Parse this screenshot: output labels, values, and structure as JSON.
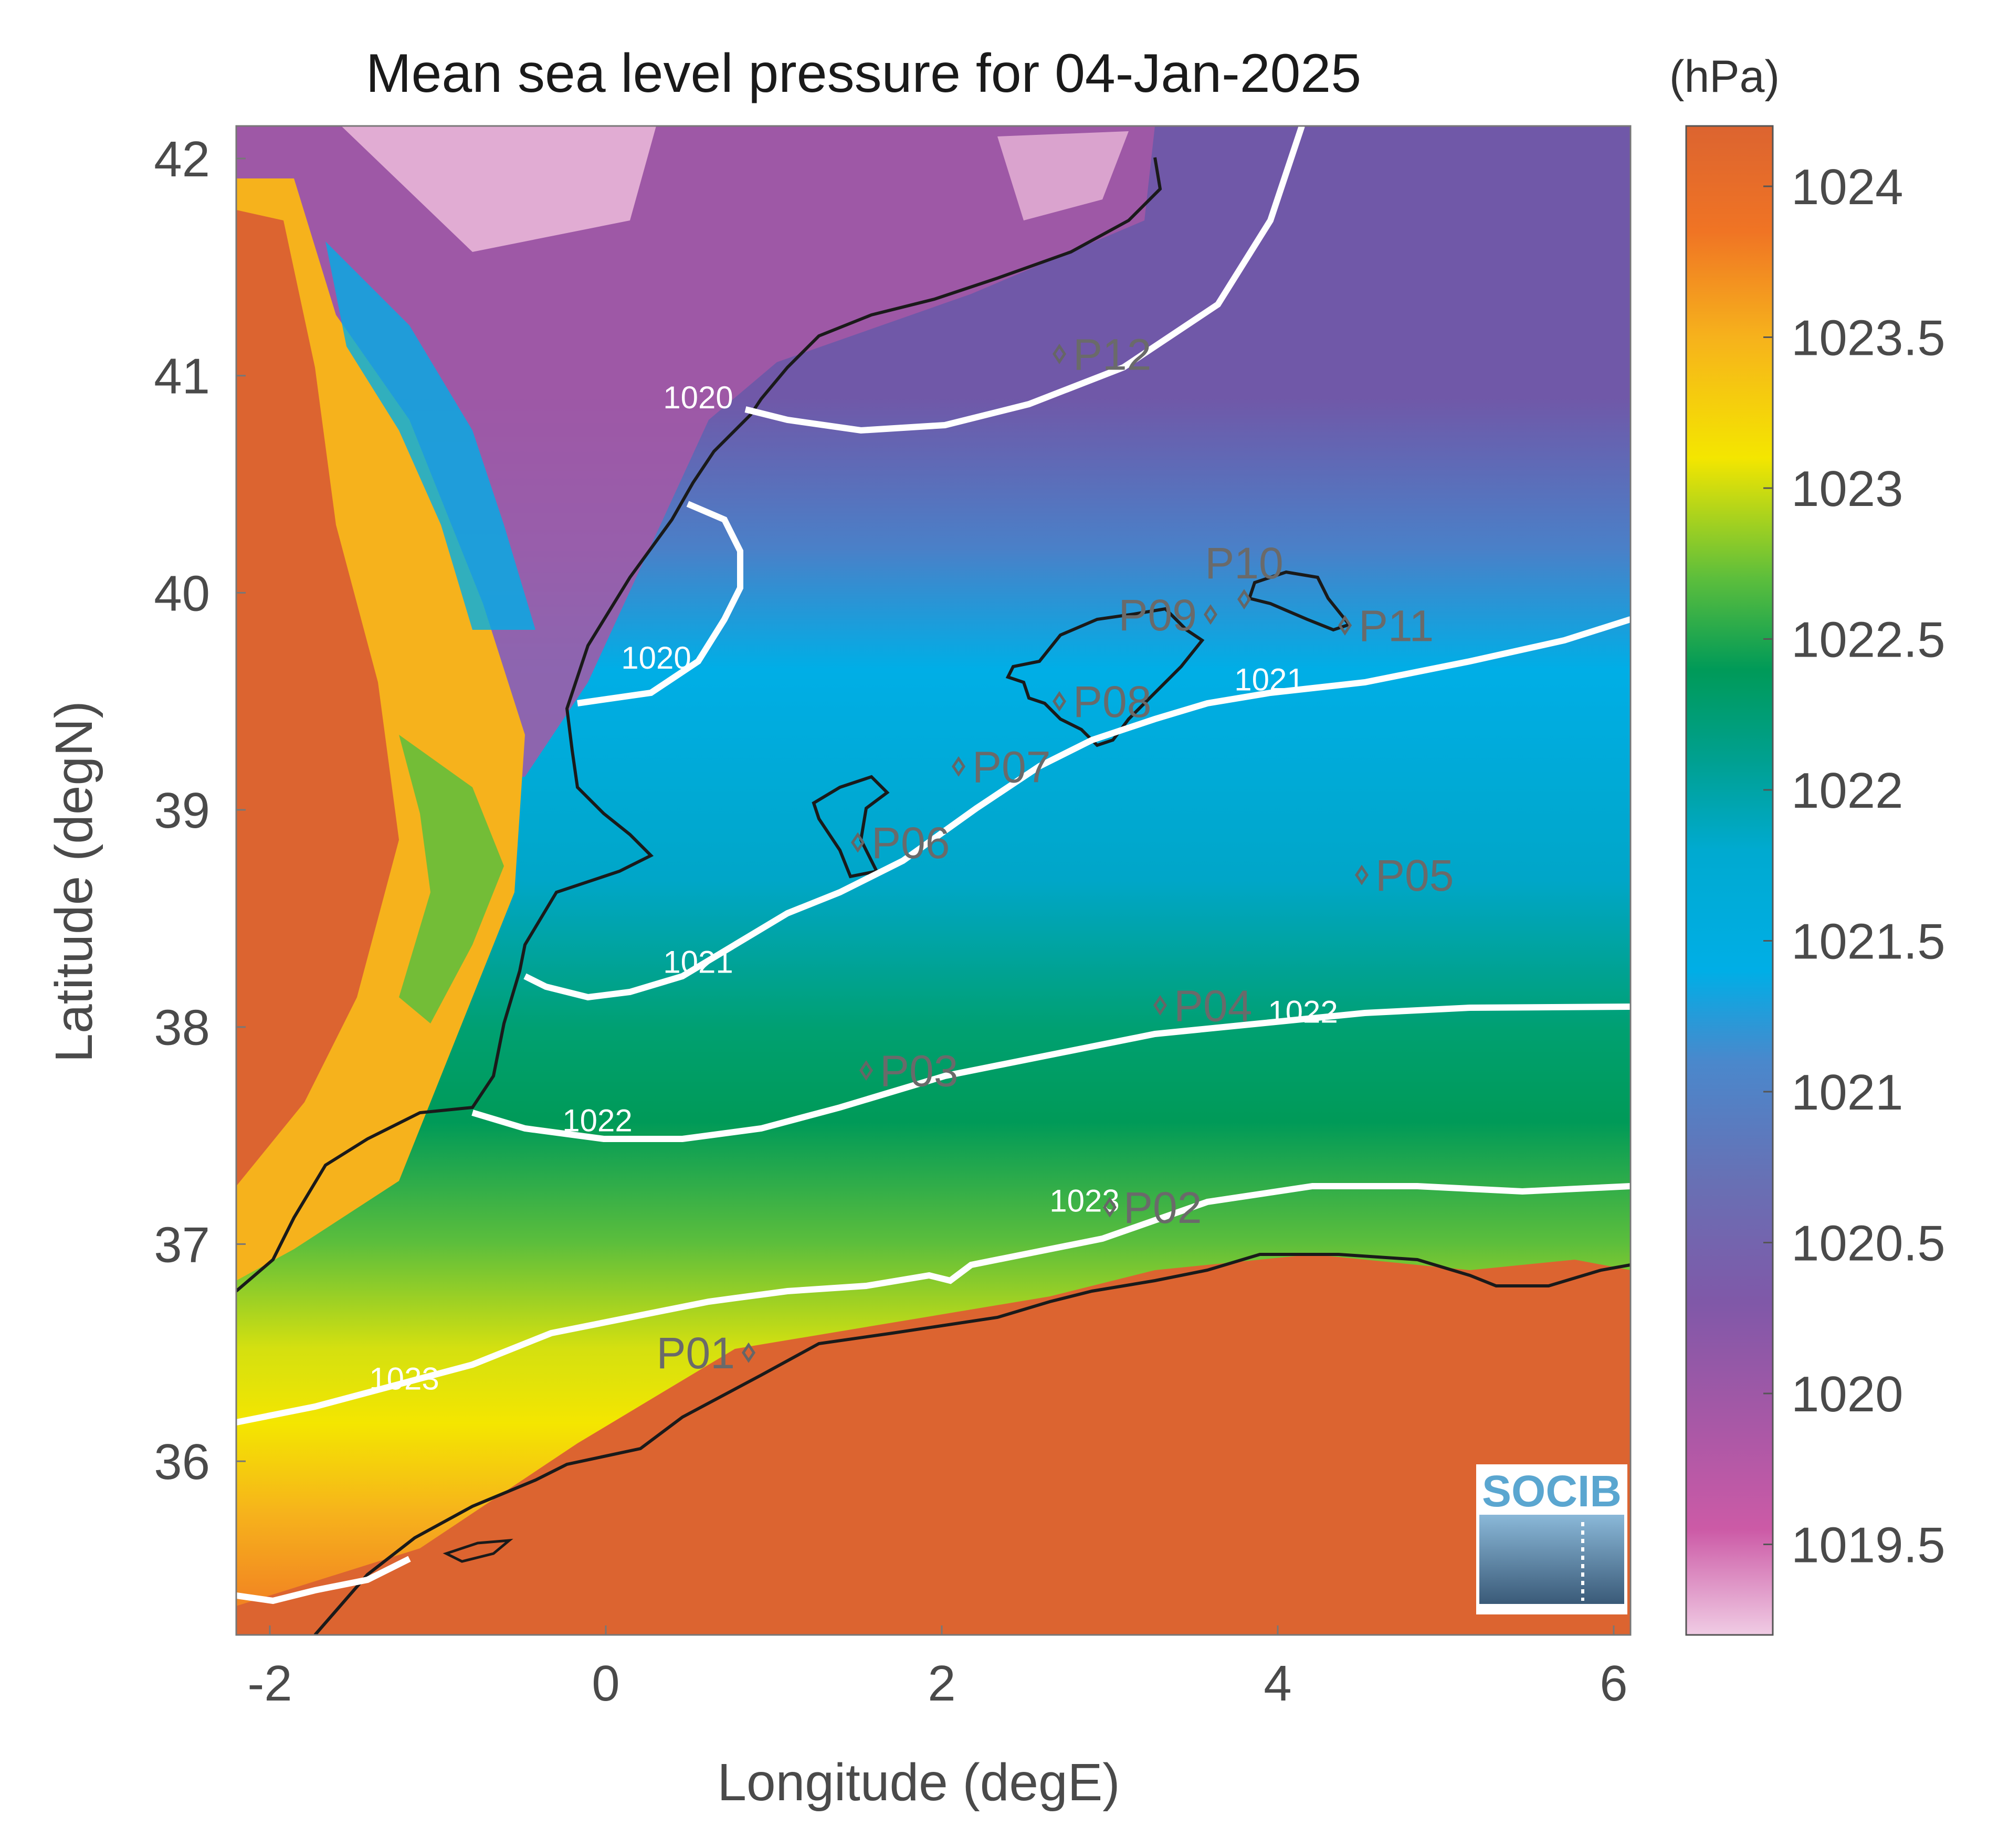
{
  "title": "Mean sea level pressure for 04-Jan-2025",
  "map": {
    "xlabel": "Longitude (degE)",
    "ylabel": "Latitude (degN)",
    "xlim": [
      -2.2,
      6.1
    ],
    "ylim": [
      35.2,
      42.15
    ],
    "xticks": [
      "-2",
      "0",
      "2",
      "4",
      "6"
    ],
    "yticks": [
      "36",
      "37",
      "38",
      "39",
      "40",
      "41",
      "42"
    ],
    "grid": false
  },
  "colorbar": {
    "unit": "(hPa)",
    "range": [
      1019.2,
      1024.2
    ],
    "ticks": [
      "1019.5",
      "1020",
      "1020.5",
      "1021",
      "1021.5",
      "1022",
      "1022.5",
      "1023",
      "1023.5",
      "1024"
    ],
    "colormap": [
      "#f0cce4",
      "#cc5aa6",
      "#9058a6",
      "#7058a8",
      "#4a80c8",
      "#00aee6",
      "#00a6a8",
      "#009a58",
      "#5cbe3c",
      "#f4e600",
      "#f6b21c",
      "#f07424",
      "#dc6430"
    ]
  },
  "contours": [
    {
      "level": "1020",
      "labels": [
        {
          "text": "1020",
          "x": 0.55,
          "y": 40.85
        },
        {
          "text": "1020",
          "x": 0.3,
          "y": 39.65
        }
      ]
    },
    {
      "level": "1021",
      "labels": [
        {
          "text": "1021",
          "x": 0.55,
          "y": 38.25
        },
        {
          "text": "1021",
          "x": 3.95,
          "y": 39.55
        }
      ]
    },
    {
      "level": "1022",
      "labels": [
        {
          "text": "1022",
          "x": -0.05,
          "y": 37.52
        },
        {
          "text": "1022",
          "x": 4.15,
          "y": 38.02
        }
      ]
    },
    {
      "level": "1023",
      "labels": [
        {
          "text": "1023",
          "x": -1.2,
          "y": 36.33
        },
        {
          "text": "1023",
          "x": 2.85,
          "y": 37.15
        }
      ]
    }
  ],
  "stations": [
    {
      "name": "P01",
      "lon": 0.85,
      "lat": 36.5,
      "label_side": "left"
    },
    {
      "name": "P02",
      "lon": 3.0,
      "lat": 37.17,
      "label_side": "right"
    },
    {
      "name": "P03",
      "lon": 1.55,
      "lat": 37.8,
      "label_side": "right"
    },
    {
      "name": "P04",
      "lon": 3.3,
      "lat": 38.1,
      "label_side": "right"
    },
    {
      "name": "P05",
      "lon": 4.5,
      "lat": 38.7,
      "label_side": "right"
    },
    {
      "name": "P06",
      "lon": 1.5,
      "lat": 38.85,
      "label_side": "right"
    },
    {
      "name": "P07",
      "lon": 2.1,
      "lat": 39.2,
      "label_side": "right"
    },
    {
      "name": "P08",
      "lon": 2.7,
      "lat": 39.5,
      "label_side": "right"
    },
    {
      "name": "P09",
      "lon": 3.6,
      "lat": 39.9,
      "label_side": "left"
    },
    {
      "name": "P10",
      "lon": 3.8,
      "lat": 39.97,
      "label_side": "above"
    },
    {
      "name": "P11",
      "lon": 4.4,
      "lat": 39.85,
      "label_side": "right"
    },
    {
      "name": "P12",
      "lon": 2.7,
      "lat": 41.1,
      "label_side": "right"
    }
  ],
  "logo": {
    "text": "SOCIB"
  }
}
